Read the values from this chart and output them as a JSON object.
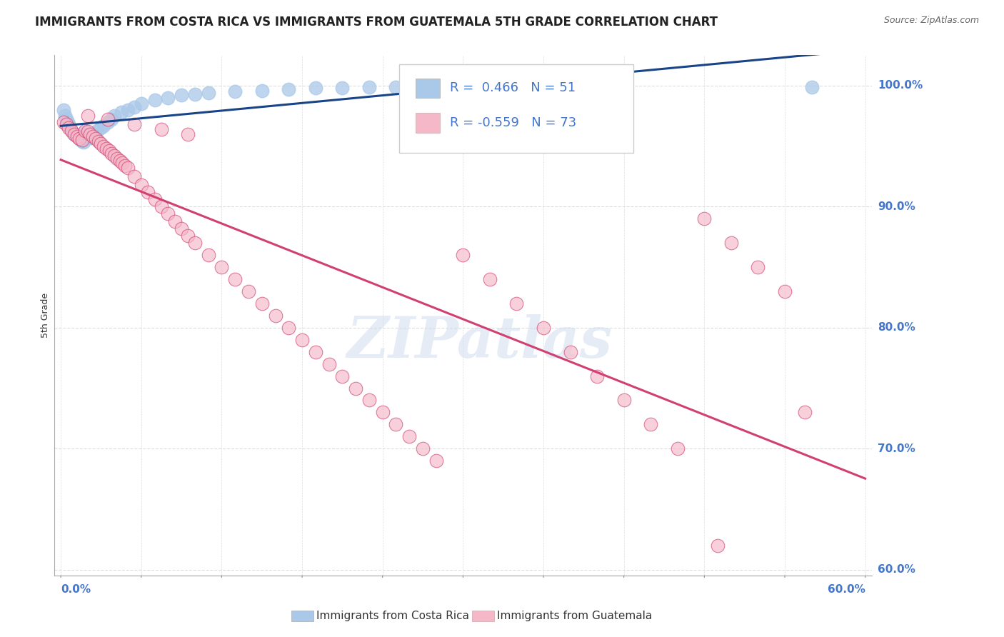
{
  "title": "IMMIGRANTS FROM COSTA RICA VS IMMIGRANTS FROM GUATEMALA 5TH GRADE CORRELATION CHART",
  "source_text": "Source: ZipAtlas.com",
  "xlabel_bottom_left": "0.0%",
  "xlabel_bottom_right": "60.0%",
  "ylabel": "5th Grade",
  "ylabel_right_labels": [
    "100.0%",
    "90.0%",
    "80.0%",
    "70.0%",
    "60.0%"
  ],
  "ylabel_right_values": [
    1.0,
    0.9,
    0.8,
    0.7,
    0.6
  ],
  "xlim": [
    -0.005,
    0.605
  ],
  "ylim": [
    0.595,
    1.025
  ],
  "blue_R": 0.466,
  "blue_N": 51,
  "pink_R": -0.559,
  "pink_N": 73,
  "legend_label_blue": "Immigrants from Costa Rica",
  "legend_label_pink": "Immigrants from Guatemala",
  "blue_color": "#aac8e8",
  "blue_line_color": "#1a4488",
  "pink_color": "#f5b8c8",
  "pink_line_color": "#d04070",
  "watermark": "ZIPatlas",
  "background_color": "#ffffff",
  "blue_x": [
    0.002,
    0.003,
    0.004,
    0.005,
    0.006,
    0.007,
    0.008,
    0.009,
    0.01,
    0.011,
    0.012,
    0.013,
    0.014,
    0.015,
    0.016,
    0.017,
    0.018,
    0.019,
    0.02,
    0.021,
    0.022,
    0.023,
    0.025,
    0.027,
    0.03,
    0.032,
    0.035,
    0.038,
    0.04,
    0.045,
    0.05,
    0.055,
    0.06,
    0.07,
    0.08,
    0.09,
    0.1,
    0.11,
    0.13,
    0.15,
    0.17,
    0.19,
    0.21,
    0.23,
    0.25,
    0.27,
    0.3,
    0.33,
    0.36,
    0.39,
    0.56
  ],
  "blue_y": [
    0.98,
    0.975,
    0.972,
    0.97,
    0.968,
    0.965,
    0.963,
    0.961,
    0.96,
    0.959,
    0.958,
    0.957,
    0.956,
    0.955,
    0.954,
    0.953,
    0.962,
    0.961,
    0.96,
    0.959,
    0.958,
    0.957,
    0.96,
    0.963,
    0.965,
    0.967,
    0.97,
    0.972,
    0.975,
    0.978,
    0.98,
    0.982,
    0.985,
    0.988,
    0.99,
    0.992,
    0.993,
    0.994,
    0.995,
    0.996,
    0.997,
    0.998,
    0.998,
    0.999,
    0.999,
    0.999,
    0.999,
    0.999,
    0.999,
    0.999,
    0.999
  ],
  "pink_x": [
    0.002,
    0.004,
    0.006,
    0.008,
    0.01,
    0.012,
    0.014,
    0.016,
    0.018,
    0.02,
    0.022,
    0.024,
    0.026,
    0.028,
    0.03,
    0.032,
    0.034,
    0.036,
    0.038,
    0.04,
    0.042,
    0.044,
    0.046,
    0.048,
    0.05,
    0.055,
    0.06,
    0.065,
    0.07,
    0.075,
    0.08,
    0.085,
    0.09,
    0.095,
    0.1,
    0.11,
    0.12,
    0.13,
    0.14,
    0.15,
    0.16,
    0.17,
    0.18,
    0.19,
    0.2,
    0.21,
    0.22,
    0.23,
    0.24,
    0.25,
    0.26,
    0.27,
    0.28,
    0.3,
    0.32,
    0.34,
    0.36,
    0.38,
    0.4,
    0.42,
    0.44,
    0.46,
    0.48,
    0.5,
    0.52,
    0.54,
    0.555,
    0.02,
    0.035,
    0.055,
    0.075,
    0.095,
    0.49
  ],
  "pink_y": [
    0.97,
    0.968,
    0.965,
    0.963,
    0.96,
    0.958,
    0.956,
    0.955,
    0.963,
    0.962,
    0.96,
    0.958,
    0.956,
    0.954,
    0.952,
    0.95,
    0.948,
    0.946,
    0.944,
    0.942,
    0.94,
    0.938,
    0.936,
    0.934,
    0.932,
    0.925,
    0.918,
    0.912,
    0.906,
    0.9,
    0.894,
    0.888,
    0.882,
    0.876,
    0.87,
    0.86,
    0.85,
    0.84,
    0.83,
    0.82,
    0.81,
    0.8,
    0.79,
    0.78,
    0.77,
    0.76,
    0.75,
    0.74,
    0.73,
    0.72,
    0.71,
    0.7,
    0.69,
    0.86,
    0.84,
    0.82,
    0.8,
    0.78,
    0.76,
    0.74,
    0.72,
    0.7,
    0.89,
    0.87,
    0.85,
    0.83,
    0.73,
    0.975,
    0.972,
    0.968,
    0.964,
    0.96,
    0.62
  ],
  "title_fontsize": 12,
  "axis_label_fontsize": 9,
  "tick_label_color": "#4477cc",
  "grid_color": "#dddddd"
}
